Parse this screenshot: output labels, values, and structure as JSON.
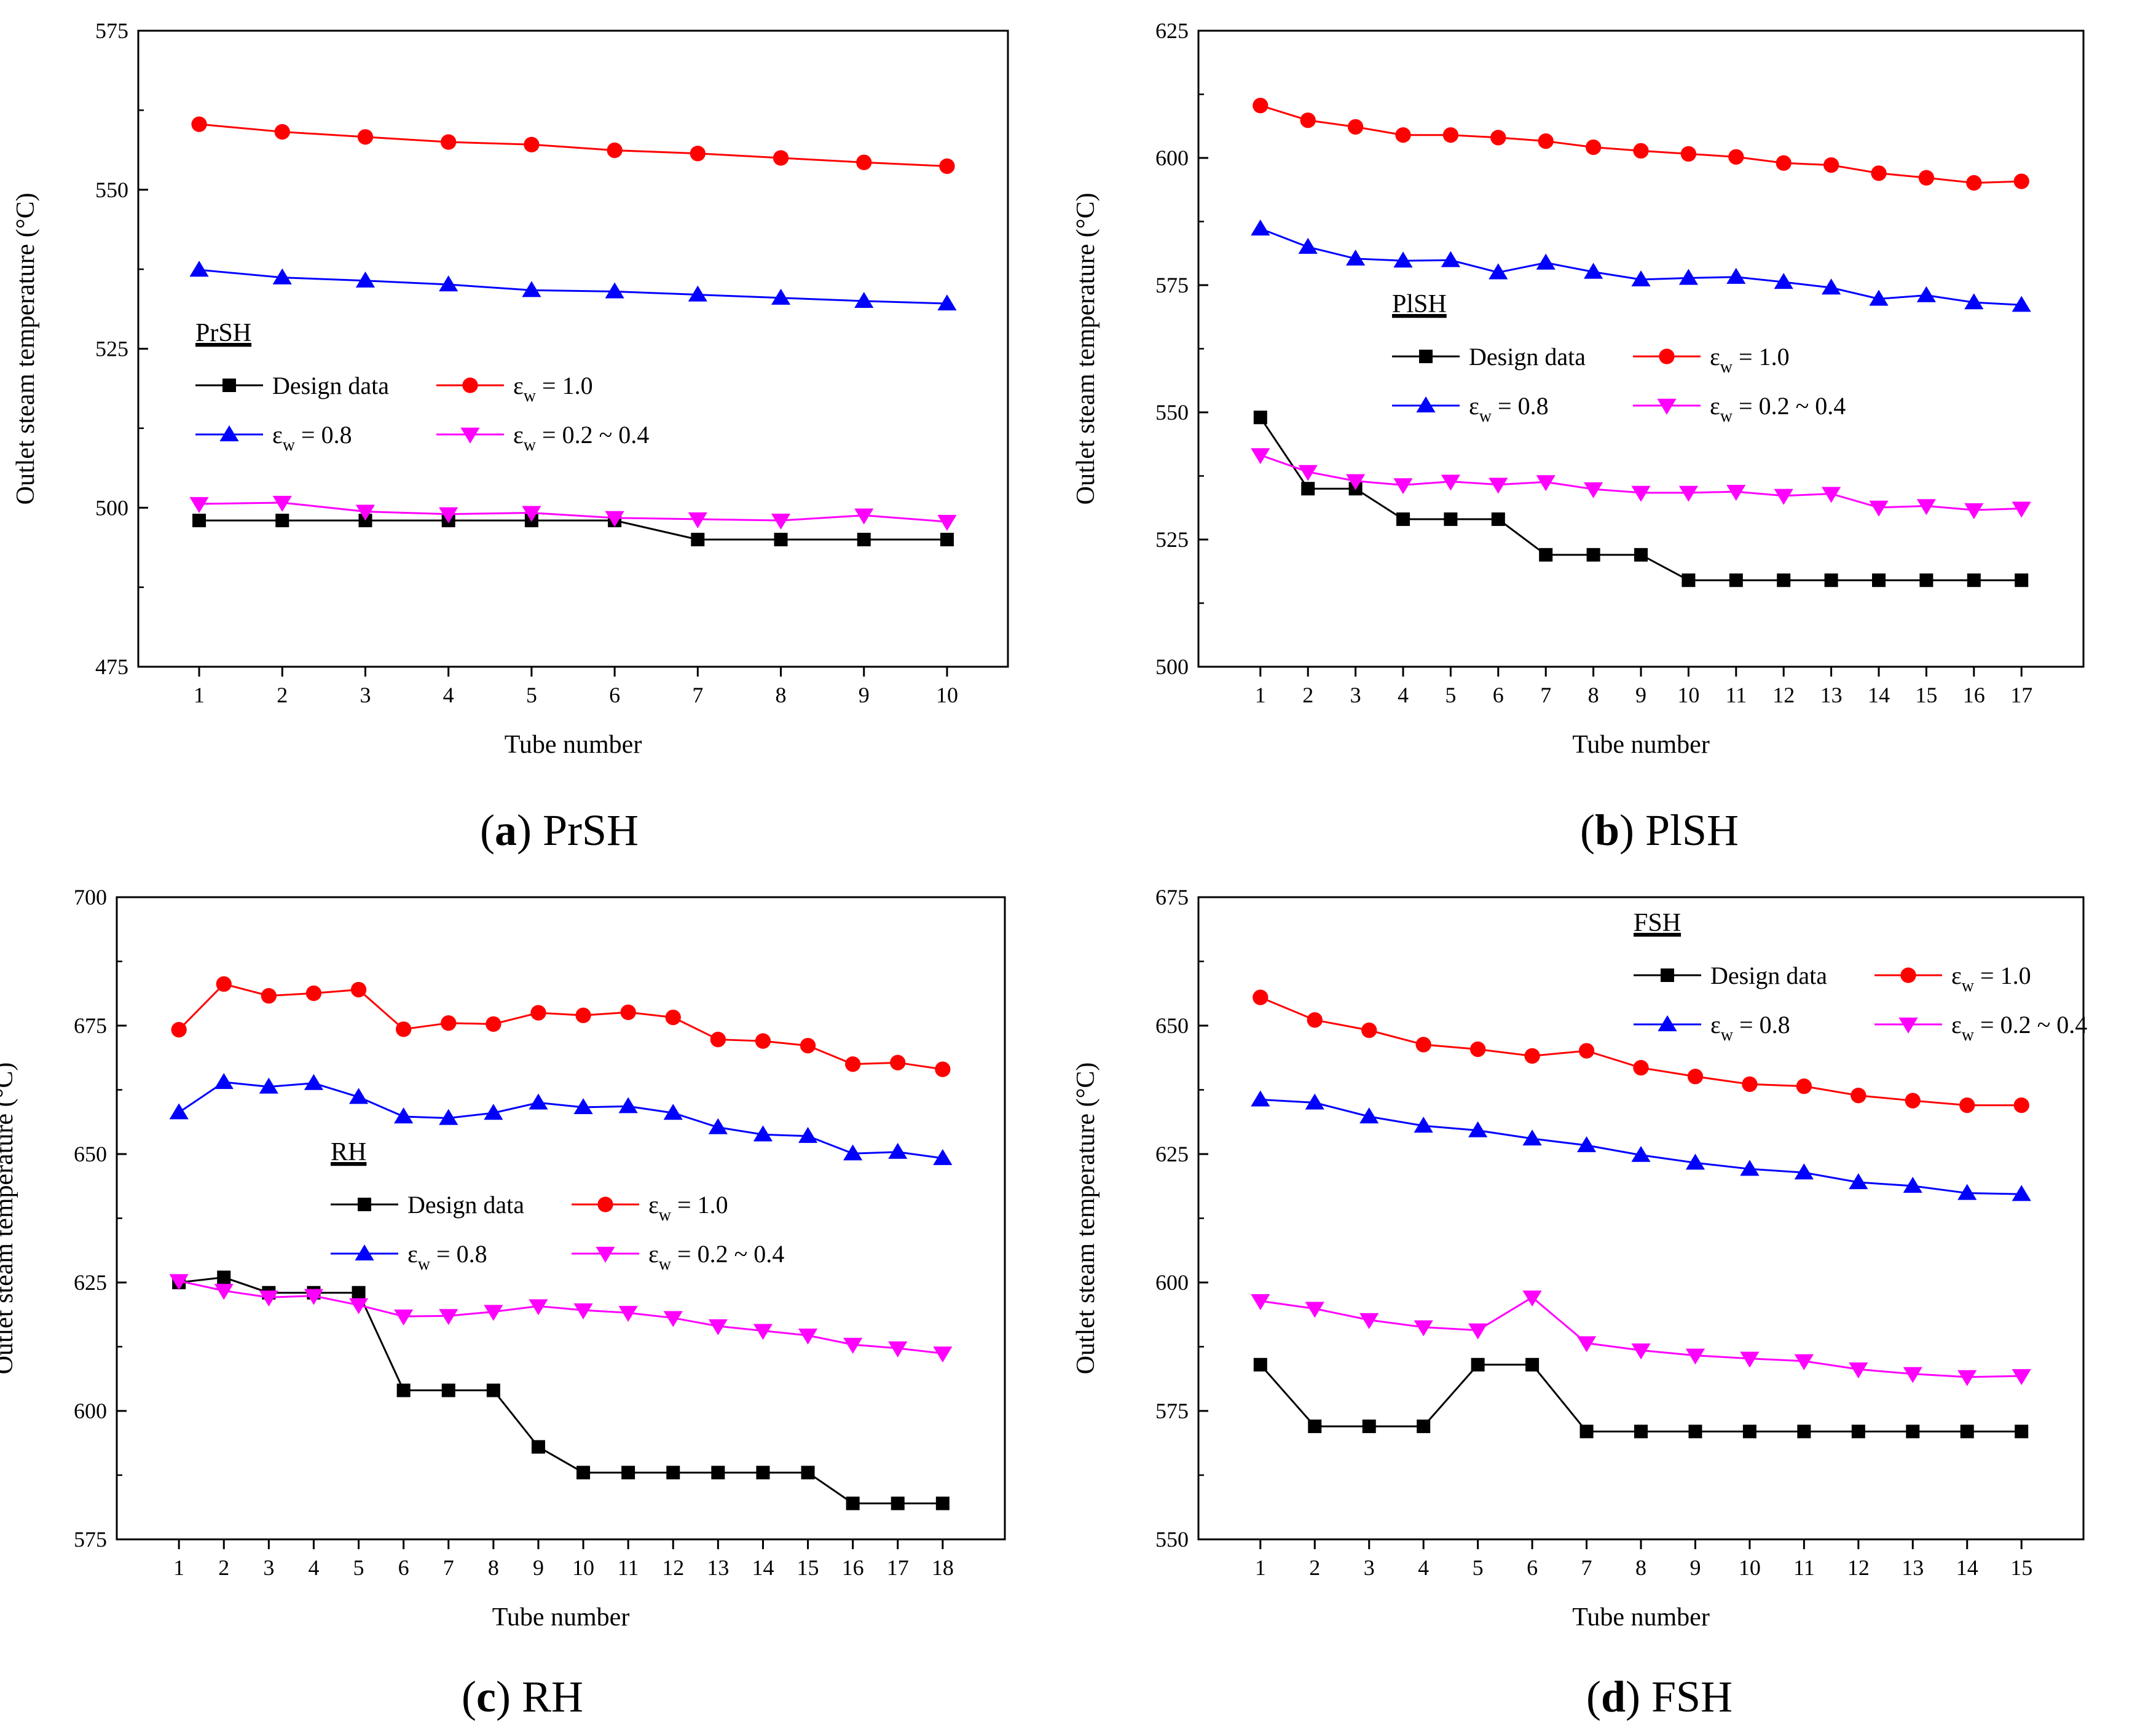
{
  "figure_colors": {
    "design": "#000000",
    "eps10": "#ff0000",
    "eps08": "#0000ff",
    "eps0204": "#ff00ff"
  },
  "chart_data": [
    {
      "id": "a",
      "type": "line",
      "caption_letter": "a",
      "caption_text": "PrSH",
      "legend_title": "PrSH",
      "xlabel": "Tube number",
      "ylabel": "Outlet steam temperature (°C)",
      "ylim": [
        475,
        575
      ],
      "yticks": [
        475,
        500,
        525,
        550,
        575
      ],
      "x": [
        1,
        2,
        3,
        4,
        5,
        6,
        7,
        8,
        9,
        10
      ],
      "series": [
        {
          "name": "Design data",
          "key": "design",
          "marker": "square",
          "values": [
            498,
            498,
            498,
            498,
            498,
            498,
            495,
            495,
            495,
            495
          ]
        },
        {
          "name": "εw = 1.0",
          "key": "eps10",
          "marker": "circle",
          "values": [
            560.3,
            559.1,
            558.3,
            557.5,
            557.1,
            556.2,
            555.7,
            555.0,
            554.3,
            553.7
          ]
        },
        {
          "name": "εw = 0.8",
          "key": "eps08",
          "marker": "triangle-up",
          "values": [
            537.4,
            536.2,
            535.7,
            535.1,
            534.2,
            534.0,
            533.5,
            533.0,
            532.5,
            532.1
          ]
        },
        {
          "name": "εw = 0.2 ~ 0.4",
          "key": "eps0204",
          "marker": "triangle-down",
          "values": [
            500.6,
            500.8,
            499.4,
            499.0,
            499.2,
            498.4,
            498.2,
            498.0,
            498.8,
            497.8
          ]
        }
      ]
    },
    {
      "id": "b",
      "type": "line",
      "caption_letter": "b",
      "caption_text": "PlSH",
      "legend_title": "PlSH",
      "xlabel": "Tube number",
      "ylabel": "Outlet steam temperature (°C)",
      "ylim": [
        500,
        625
      ],
      "yticks": [
        500,
        525,
        550,
        575,
        600,
        625
      ],
      "x": [
        1,
        2,
        3,
        4,
        5,
        6,
        7,
        8,
        9,
        10,
        11,
        12,
        13,
        14,
        15,
        16,
        17
      ],
      "series": [
        {
          "name": "Design data",
          "key": "design",
          "marker": "square",
          "values": [
            549,
            535,
            535,
            529,
            529,
            529,
            522,
            522,
            522,
            517,
            517,
            517,
            517,
            517,
            517,
            517,
            517
          ]
        },
        {
          "name": "εw = 1.0",
          "key": "eps10",
          "marker": "circle",
          "values": [
            610.3,
            607.4,
            606.1,
            604.5,
            604.5,
            604.0,
            603.3,
            602.1,
            601.4,
            600.8,
            600.2,
            599.0,
            598.6,
            597.0,
            596.1,
            595.1,
            595.4
          ]
        },
        {
          "name": "εw = 0.8",
          "key": "eps08",
          "marker": "triangle-up",
          "values": [
            586.1,
            582.5,
            580.2,
            579.8,
            579.9,
            577.5,
            579.4,
            577.6,
            576.1,
            576.4,
            576.6,
            575.6,
            574.5,
            572.3,
            573.0,
            571.6,
            571.1
          ]
        },
        {
          "name": "εw = 0.2 ~ 0.4",
          "key": "eps0204",
          "marker": "triangle-down",
          "values": [
            541.6,
            538.3,
            536.5,
            535.7,
            536.4,
            535.8,
            536.3,
            534.9,
            534.2,
            534.2,
            534.4,
            533.6,
            534.0,
            531.3,
            531.6,
            530.8,
            531.1
          ]
        }
      ]
    },
    {
      "id": "c",
      "type": "line",
      "caption_letter": "c",
      "caption_text": "RH",
      "legend_title": "RH",
      "xlabel": "Tube number",
      "ylabel": "Outlet steam temperature (°C)",
      "ylim": [
        575,
        700
      ],
      "yticks": [
        575,
        600,
        625,
        650,
        675,
        700
      ],
      "x": [
        1,
        2,
        3,
        4,
        5,
        6,
        7,
        8,
        9,
        10,
        11,
        12,
        13,
        14,
        15,
        16,
        17,
        18
      ],
      "series": [
        {
          "name": "Design data",
          "key": "design",
          "marker": "square",
          "values": [
            625,
            626,
            623,
            623,
            623,
            604,
            604,
            604,
            593,
            588,
            588,
            588,
            588,
            588,
            588,
            582,
            582,
            582
          ]
        },
        {
          "name": "εw = 1.0",
          "key": "eps10",
          "marker": "circle",
          "values": [
            674.2,
            683.1,
            680.8,
            681.3,
            682.0,
            674.3,
            675.5,
            675.3,
            677.5,
            677.0,
            677.6,
            676.6,
            672.3,
            672.0,
            671.1,
            667.5,
            667.8,
            666.5
          ]
        },
        {
          "name": "εw = 0.8",
          "key": "eps08",
          "marker": "triangle-up",
          "values": [
            658.1,
            664.0,
            663.1,
            663.8,
            661.1,
            657.3,
            657.0,
            658.0,
            660.0,
            659.1,
            659.3,
            658.0,
            655.2,
            653.8,
            653.5,
            650.1,
            650.4,
            649.2
          ]
        },
        {
          "name": "εw = 0.2 ~ 0.4",
          "key": "eps0204",
          "marker": "triangle-down",
          "values": [
            625.3,
            623.4,
            622.1,
            622.4,
            620.6,
            618.4,
            618.5,
            619.3,
            620.4,
            619.6,
            619.1,
            618.1,
            616.5,
            615.6,
            614.7,
            612.9,
            612.2,
            611.2
          ]
        }
      ]
    },
    {
      "id": "d",
      "type": "line",
      "caption_letter": "d",
      "caption_text": "FSH",
      "legend_title": "FSH",
      "xlabel": "Tube number",
      "ylabel": "Outlet steam temperature (°C)",
      "ylim": [
        550,
        675
      ],
      "yticks": [
        550,
        575,
        600,
        625,
        650,
        675
      ],
      "x": [
        1,
        2,
        3,
        4,
        5,
        6,
        7,
        8,
        9,
        10,
        11,
        12,
        13,
        14,
        15
      ],
      "series": [
        {
          "name": "Design data",
          "key": "design",
          "marker": "square",
          "values": [
            584,
            572,
            572,
            572,
            584,
            584,
            571,
            571,
            571,
            571,
            571,
            571,
            571,
            571,
            571
          ]
        },
        {
          "name": "εw = 1.0",
          "key": "eps10",
          "marker": "circle",
          "values": [
            655.5,
            651.1,
            649.1,
            646.3,
            645.4,
            644.1,
            645.1,
            641.8,
            640.1,
            638.6,
            638.2,
            636.4,
            635.4,
            634.5,
            634.5
          ]
        },
        {
          "name": "εw = 0.8",
          "key": "eps08",
          "marker": "triangle-up",
          "values": [
            635.6,
            635.0,
            632.3,
            630.5,
            629.6,
            628.0,
            626.7,
            624.8,
            623.3,
            622.1,
            621.4,
            619.5,
            618.8,
            617.4,
            617.2
          ]
        },
        {
          "name": "εw = 0.2 ~ 0.4",
          "key": "eps0204",
          "marker": "triangle-down",
          "values": [
            596.4,
            594.9,
            592.7,
            591.3,
            590.7,
            597.1,
            588.2,
            586.8,
            585.8,
            585.2,
            584.7,
            583.1,
            582.2,
            581.6,
            581.8
          ]
        }
      ]
    }
  ]
}
